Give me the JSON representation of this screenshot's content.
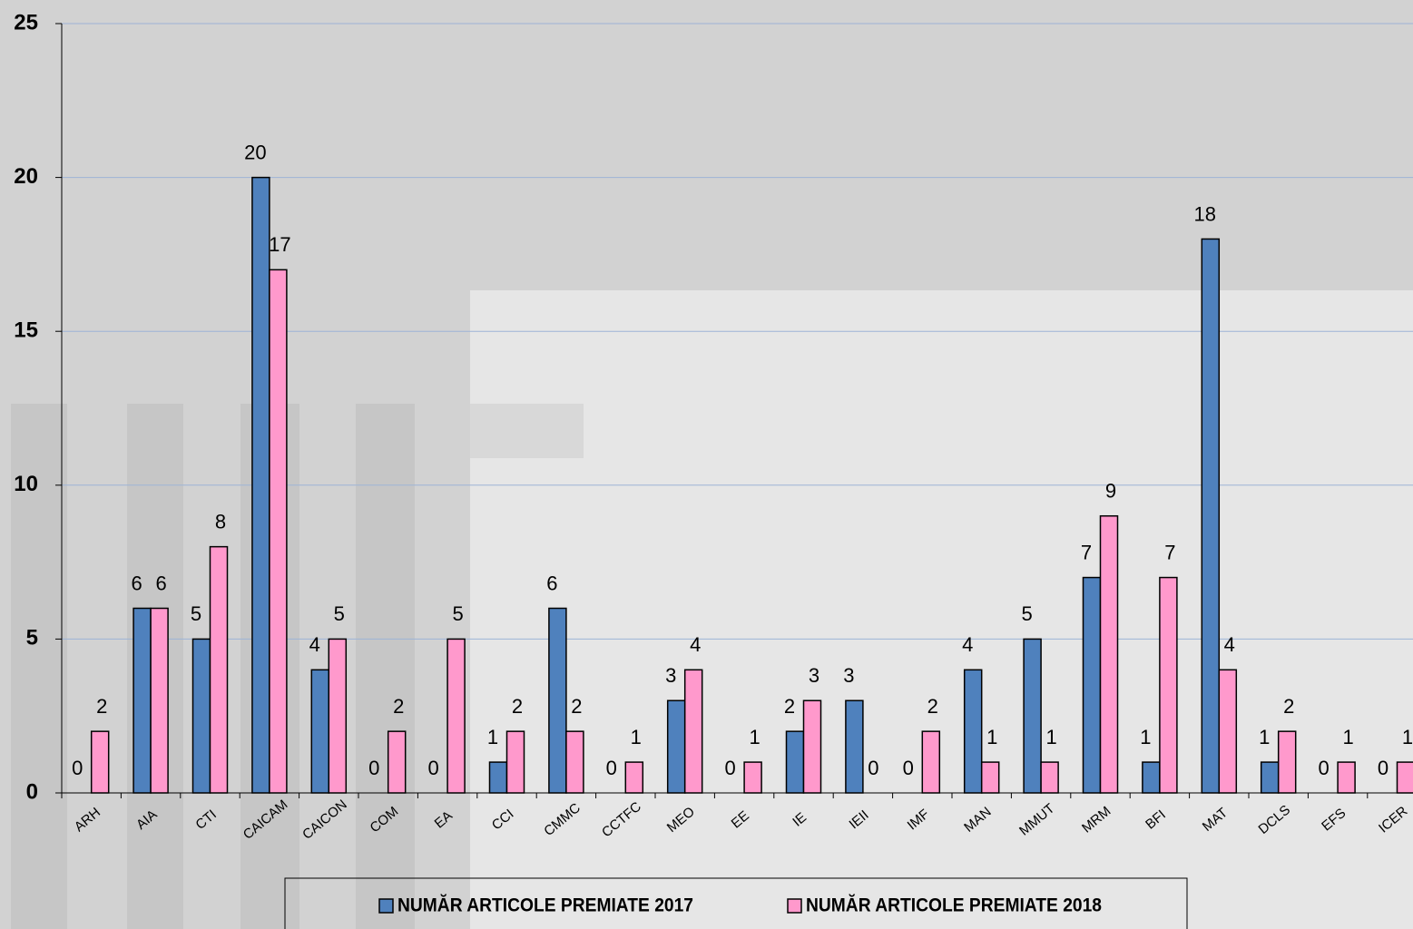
{
  "chart_data": {
    "type": "bar",
    "categories": [
      "ARH",
      "AIA",
      "CTI",
      "CAICAM",
      "CAICON",
      "COM",
      "EA",
      "CCI",
      "CMMC",
      "CCTFC",
      "MEO",
      "EE",
      "IE",
      "IEII",
      "IMF",
      "MAN",
      "MMUT",
      "MRM",
      "BFI",
      "MAT",
      "DCLS",
      "EFS",
      "ICER"
    ],
    "series": [
      {
        "name": "NUMĂR ARTICOLE PREMIATE 2017",
        "color": "#4f81bd",
        "values": [
          0,
          6,
          5,
          20,
          4,
          0,
          0,
          1,
          6,
          0,
          3,
          0,
          2,
          3,
          0,
          4,
          5,
          7,
          1,
          18,
          1,
          0,
          0
        ]
      },
      {
        "name": "NUMĂR ARTICOLE PREMIATE 2018",
        "color": "#ff99cc",
        "values": [
          2,
          6,
          8,
          17,
          5,
          2,
          5,
          2,
          2,
          1,
          4,
          1,
          3,
          0,
          2,
          1,
          1,
          9,
          7,
          4,
          2,
          1,
          1
        ]
      }
    ],
    "ylim": [
      0,
      25
    ],
    "yticks": [
      0,
      5,
      10,
      15,
      20,
      25
    ],
    "grid": true,
    "legend": "bottom"
  }
}
